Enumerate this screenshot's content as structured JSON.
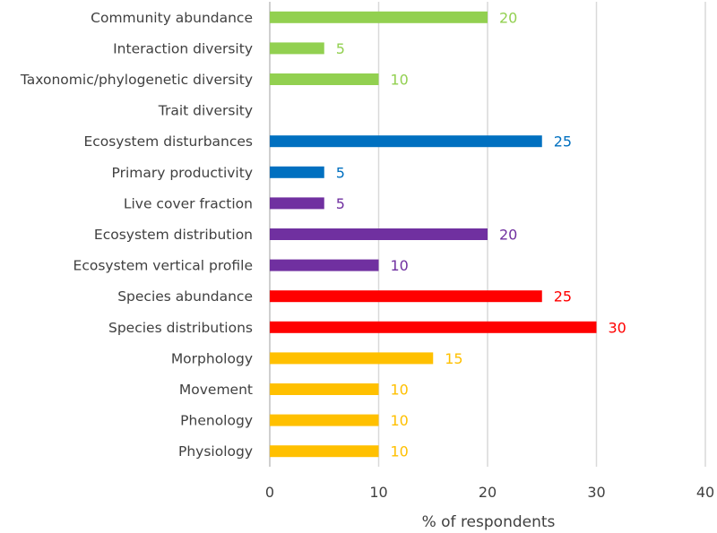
{
  "chart_data": {
    "type": "bar",
    "orientation": "horizontal",
    "title": "",
    "xlabel": "% of respondents",
    "ylabel": "",
    "xlim": [
      0,
      40
    ],
    "xticks": [
      0,
      10,
      20,
      30,
      40
    ],
    "grid": "vertical",
    "legend": "none",
    "data_labels": true,
    "categories": [
      "Community abundance",
      "Interaction diversity",
      "Taxonomic/phylogenetic diversity",
      "Trait diversity",
      "Ecosystem disturbances",
      "Primary productivity",
      "Live cover fraction",
      "Ecosystem distribution",
      "Ecosystem vertical profile",
      "Species abundance",
      "Species distributions",
      "Morphology",
      "Movement",
      "Phenology",
      "Physiology"
    ],
    "values": [
      20,
      5,
      10,
      0,
      25,
      5,
      5,
      20,
      10,
      25,
      30,
      15,
      10,
      10,
      10
    ],
    "value_labels": [
      "20",
      "5",
      "10",
      "",
      "25",
      "5",
      "5",
      "20",
      "10",
      "25",
      "30",
      "15",
      "10",
      "10",
      "10"
    ],
    "colors": [
      "#92d050",
      "#92d050",
      "#92d050",
      "#92d050",
      "#0070c0",
      "#0070c0",
      "#7030a0",
      "#7030a0",
      "#7030a0",
      "#ff0000",
      "#ff0000",
      "#ffc000",
      "#ffc000",
      "#ffc000",
      "#ffc000"
    ]
  },
  "colors": {
    "gridline": "#d9d9d9",
    "axis": "#bfbfbf",
    "text": "#404040"
  }
}
